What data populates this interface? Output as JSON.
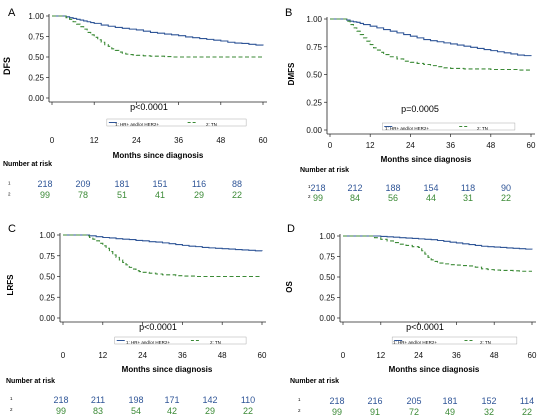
{
  "colors": {
    "hr": "#2f5597",
    "tn": "#3b8a36",
    "axis": "#222222",
    "text": "#111111"
  },
  "x_label": "Months since diagnosis",
  "x_ticks": [
    0,
    12,
    24,
    36,
    48,
    60
  ],
  "y_ticks": [
    "0.00",
    "0.25",
    "0.50",
    "0.75",
    "1.00"
  ],
  "legend": {
    "hr": "1: HR+ and/or HER2+",
    "tn": "2: TN"
  },
  "risk_title": "Number at risk",
  "chart_data": [
    {
      "type": "line",
      "panel": "A",
      "ylabel": "DFS",
      "pvalue": "p<0.0001",
      "xlim": [
        0,
        60
      ],
      "ylim": [
        0,
        1
      ],
      "series": [
        {
          "name": "1: HR+ and/or HER2+",
          "style": "solid",
          "x": [
            0,
            3,
            4,
            5,
            6,
            7,
            8,
            9,
            10,
            11,
            12,
            14,
            16,
            18,
            20,
            22,
            24,
            26,
            28,
            30,
            32,
            34,
            36,
            38,
            40,
            42,
            44,
            46,
            48,
            50,
            52,
            54,
            56,
            58,
            60
          ],
          "y": [
            1.0,
            1.0,
            0.99,
            0.98,
            0.97,
            0.96,
            0.95,
            0.94,
            0.93,
            0.92,
            0.91,
            0.89,
            0.875,
            0.86,
            0.85,
            0.84,
            0.83,
            0.815,
            0.8,
            0.79,
            0.78,
            0.77,
            0.76,
            0.745,
            0.735,
            0.725,
            0.715,
            0.705,
            0.695,
            0.68,
            0.67,
            0.665,
            0.655,
            0.645,
            0.64
          ]
        },
        {
          "name": "2: TN",
          "style": "dashed",
          "x": [
            0,
            3,
            4,
            5,
            6,
            7,
            8,
            9,
            10,
            11,
            12,
            13,
            14,
            15,
            16,
            17,
            18,
            19,
            20,
            21,
            22,
            23,
            24,
            26,
            28,
            30,
            32,
            34,
            36,
            40,
            48,
            56,
            60
          ],
          "y": [
            1.0,
            1.0,
            0.98,
            0.96,
            0.93,
            0.9,
            0.87,
            0.84,
            0.8,
            0.77,
            0.74,
            0.71,
            0.68,
            0.65,
            0.63,
            0.6,
            0.58,
            0.56,
            0.545,
            0.535,
            0.53,
            0.525,
            0.52,
            0.515,
            0.51,
            0.51,
            0.505,
            0.5,
            0.5,
            0.5,
            0.5,
            0.5,
            0.5
          ]
        }
      ],
      "risk": {
        "hr": [
          218,
          209,
          181,
          151,
          116,
          88
        ],
        "tn": [
          99,
          78,
          51,
          41,
          29,
          22
        ]
      }
    },
    {
      "type": "line",
      "panel": "B",
      "ylabel": "DMFS",
      "pvalue": "p=0.0005",
      "xlim": [
        0,
        60
      ],
      "ylim": [
        0,
        1
      ],
      "series": [
        {
          "name": "1: HR+ and/or HER2+",
          "style": "solid",
          "x": [
            0,
            4,
            5,
            6,
            7,
            8,
            9,
            10,
            12,
            14,
            16,
            18,
            20,
            22,
            24,
            26,
            28,
            30,
            32,
            34,
            36,
            38,
            40,
            42,
            44,
            46,
            48,
            50,
            52,
            54,
            56,
            58,
            60
          ],
          "y": [
            1.0,
            1.0,
            0.99,
            0.98,
            0.975,
            0.97,
            0.96,
            0.95,
            0.935,
            0.92,
            0.905,
            0.89,
            0.875,
            0.86,
            0.845,
            0.83,
            0.815,
            0.805,
            0.795,
            0.785,
            0.775,
            0.765,
            0.755,
            0.745,
            0.735,
            0.725,
            0.715,
            0.705,
            0.695,
            0.685,
            0.675,
            0.67,
            0.665
          ]
        },
        {
          "name": "2: TN",
          "style": "dashed",
          "x": [
            0,
            4,
            5,
            6,
            7,
            8,
            9,
            10,
            11,
            12,
            13,
            14,
            15,
            16,
            18,
            20,
            22,
            24,
            26,
            28,
            30,
            32,
            34,
            36,
            40,
            48,
            56,
            60
          ],
          "y": [
            1.0,
            1.0,
            0.98,
            0.95,
            0.92,
            0.89,
            0.86,
            0.83,
            0.8,
            0.77,
            0.74,
            0.72,
            0.7,
            0.68,
            0.66,
            0.64,
            0.62,
            0.61,
            0.6,
            0.59,
            0.58,
            0.57,
            0.56,
            0.555,
            0.55,
            0.545,
            0.54,
            0.54
          ]
        }
      ],
      "risk": {
        "hr": [
          218,
          212,
          188,
          154,
          118,
          90
        ],
        "tn": [
          99,
          84,
          56,
          44,
          31,
          22
        ]
      }
    },
    {
      "type": "line",
      "panel": "C",
      "ylabel": "LRFS",
      "pvalue": "p<0.0001",
      "xlim": [
        0,
        60
      ],
      "ylim": [
        0,
        1
      ],
      "series": [
        {
          "name": "1: HR+ and/or HER2+",
          "style": "solid",
          "x": [
            0,
            6,
            8,
            10,
            12,
            14,
            16,
            18,
            20,
            22,
            24,
            26,
            28,
            30,
            32,
            34,
            36,
            38,
            40,
            42,
            44,
            46,
            48,
            50,
            52,
            54,
            56,
            58,
            60
          ],
          "y": [
            1.0,
            1.0,
            0.99,
            0.98,
            0.97,
            0.965,
            0.955,
            0.95,
            0.945,
            0.935,
            0.93,
            0.92,
            0.915,
            0.905,
            0.895,
            0.885,
            0.875,
            0.865,
            0.86,
            0.85,
            0.845,
            0.84,
            0.835,
            0.83,
            0.825,
            0.82,
            0.815,
            0.81,
            0.805
          ]
        },
        {
          "name": "2: TN",
          "style": "dashed",
          "x": [
            0,
            6,
            7,
            8,
            9,
            10,
            11,
            12,
            13,
            14,
            15,
            16,
            17,
            18,
            19,
            20,
            21,
            22,
            23,
            24,
            26,
            28,
            30,
            34,
            36,
            40,
            48,
            56,
            60
          ],
          "y": [
            1.0,
            1.0,
            0.99,
            0.97,
            0.95,
            0.93,
            0.9,
            0.87,
            0.84,
            0.8,
            0.76,
            0.73,
            0.7,
            0.67,
            0.64,
            0.61,
            0.59,
            0.57,
            0.56,
            0.55,
            0.54,
            0.53,
            0.52,
            0.51,
            0.505,
            0.5,
            0.5,
            0.5,
            0.5
          ]
        }
      ],
      "risk": {
        "hr": [
          218,
          211,
          198,
          171,
          142,
          110
        ],
        "tn": [
          99,
          83,
          54,
          42,
          29,
          22
        ]
      }
    },
    {
      "type": "line",
      "panel": "D",
      "ylabel": "OS",
      "pvalue": "p<0.0001",
      "xlim": [
        0,
        60
      ],
      "ylim": [
        0,
        1
      ],
      "series": [
        {
          "name": "1: HR+ and/or HER2+",
          "style": "solid",
          "x": [
            0,
            10,
            12,
            14,
            16,
            18,
            20,
            22,
            24,
            26,
            28,
            30,
            32,
            34,
            36,
            38,
            40,
            42,
            44,
            46,
            48,
            50,
            52,
            54,
            56,
            58,
            60
          ],
          "y": [
            1.0,
            1.0,
            0.995,
            0.99,
            0.985,
            0.98,
            0.975,
            0.97,
            0.965,
            0.96,
            0.955,
            0.945,
            0.935,
            0.925,
            0.915,
            0.905,
            0.895,
            0.885,
            0.875,
            0.87,
            0.865,
            0.86,
            0.855,
            0.85,
            0.845,
            0.84,
            0.835
          ]
        },
        {
          "name": "2: TN",
          "style": "dashed",
          "x": [
            0,
            8,
            10,
            12,
            14,
            16,
            18,
            20,
            22,
            24,
            25,
            26,
            27,
            28,
            29,
            30,
            32,
            34,
            36,
            38,
            40,
            42,
            44,
            46,
            48,
            50,
            52,
            54,
            56,
            58,
            60
          ],
          "y": [
            1.0,
            1.0,
            0.98,
            0.96,
            0.94,
            0.92,
            0.9,
            0.885,
            0.87,
            0.86,
            0.82,
            0.78,
            0.74,
            0.71,
            0.69,
            0.67,
            0.66,
            0.65,
            0.645,
            0.64,
            0.635,
            0.62,
            0.6,
            0.59,
            0.585,
            0.58,
            0.58,
            0.575,
            0.57,
            0.57,
            0.57
          ]
        }
      ],
      "risk": {
        "hr": [
          218,
          216,
          205,
          181,
          152,
          114
        ],
        "tn": [
          99,
          91,
          72,
          49,
          32,
          22
        ]
      }
    }
  ]
}
